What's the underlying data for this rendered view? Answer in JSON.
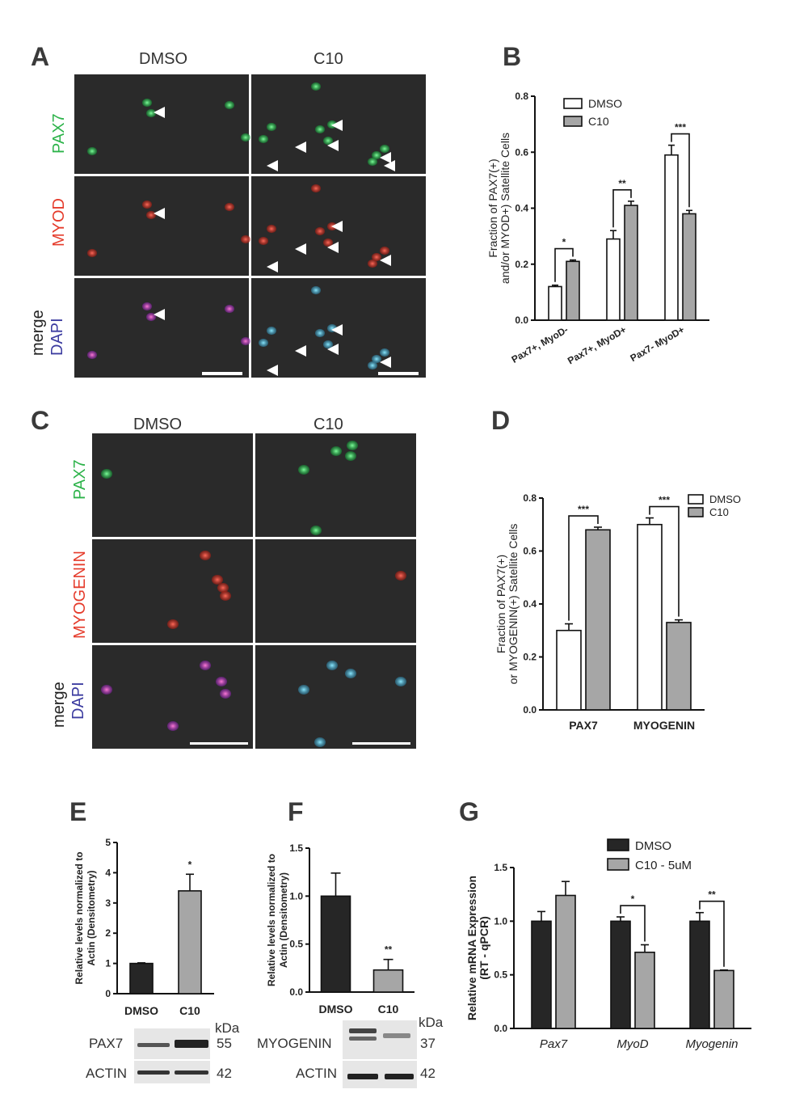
{
  "panels": {
    "A": {
      "label": "A",
      "columns": [
        "DMSO",
        "C10"
      ],
      "rows": [
        {
          "text": "PAX7",
          "color": "#2db34a"
        },
        {
          "text": "MYOD",
          "color": "#e53c2c"
        },
        {
          "text": "merge",
          "color": "#222222"
        },
        {
          "text": "DAPI",
          "color": "#3c3ca0"
        }
      ]
    },
    "C": {
      "label": "C",
      "columns": [
        "DMSO",
        "C10"
      ],
      "rows": [
        {
          "text": "PAX7",
          "color": "#2db34a"
        },
        {
          "text": "MYOGENIN",
          "color": "#e53c2c"
        },
        {
          "text": "merge",
          "color": "#222222"
        },
        {
          "text": "DAPI",
          "color": "#3c3ca0"
        }
      ]
    },
    "E_blot": {
      "rows": [
        "PAX7",
        "ACTIN"
      ],
      "kda_label": "kDa",
      "kda": [
        "55",
        "42"
      ]
    },
    "F_blot": {
      "rows": [
        "MYOGENIN",
        "ACTIN"
      ],
      "kda_label": "kDa",
      "kda": [
        "37",
        "42"
      ]
    }
  },
  "chart_data": [
    {
      "id": "B",
      "panel_label": "B",
      "type": "bar",
      "ylabel": "Fraction of PAX7(+) and/or MYOD+) Satellite Cells",
      "ylabel_lines": [
        "Fraction of PAX7(+)",
        "and/or MYOD+) Satellite Cells"
      ],
      "categories": [
        "Pax7+, MyoD-",
        "Pax7+, MyoD+",
        "Pax7- MyoD+"
      ],
      "ylim": [
        0,
        0.8
      ],
      "yticks": [
        "0.0",
        "0.2",
        "0.4",
        "0.6",
        "0.8"
      ],
      "series": [
        {
          "name": "DMSO",
          "values": [
            0.12,
            0.29,
            0.59
          ],
          "errors": [
            0.005,
            0.03,
            0.035
          ],
          "color": "#ffffff"
        },
        {
          "name": "C10",
          "values": [
            0.21,
            0.41,
            0.38
          ],
          "errors": [
            0.005,
            0.015,
            0.012
          ],
          "color": "#a6a6a6"
        }
      ],
      "significance": [
        "*",
        "**",
        "***"
      ],
      "legend_position": "top"
    },
    {
      "id": "D",
      "panel_label": "D",
      "type": "bar",
      "ylabel": "Fraction of PAX7(+) or MYOGENIN(+) Satellite Cells",
      "ylabel_lines": [
        "Fraction of PAX7(+)",
        "or MYOGENIN(+) Satellite Cells"
      ],
      "categories": [
        "PAX7",
        "MYOGENIN"
      ],
      "ylim": [
        0,
        0.8
      ],
      "yticks": [
        "0.0",
        "0.2",
        "0.4",
        "0.6",
        "0.8"
      ],
      "series": [
        {
          "name": "DMSO",
          "values": [
            0.3,
            0.7
          ],
          "errors": [
            0.025,
            0.025
          ],
          "color": "#ffffff"
        },
        {
          "name": "C10",
          "values": [
            0.68,
            0.33
          ],
          "errors": [
            0.01,
            0.01
          ],
          "color": "#a6a6a6"
        }
      ],
      "significance": [
        "***",
        "***"
      ],
      "legend_position": "top-right"
    },
    {
      "id": "E",
      "panel_label": "E",
      "type": "bar",
      "ylabel": "Relative levels normalized to Actin (Densitometry)",
      "ylabel_lines": [
        "Relative levels normalized to",
        "Actin (Densitometry)"
      ],
      "categories": [
        "DMSO",
        "C10"
      ],
      "ylim": [
        0,
        5
      ],
      "yticks": [
        "0",
        "1",
        "2",
        "3",
        "4",
        "5"
      ],
      "values": [
        1.0,
        3.4
      ],
      "errors": [
        0.02,
        0.55
      ],
      "colors": [
        "#262626",
        "#a6a6a6"
      ],
      "significance": [
        "",
        "*"
      ]
    },
    {
      "id": "F",
      "panel_label": "F",
      "type": "bar",
      "ylabel": "Relative levels normalized to Actin (Densitometry)",
      "ylabel_lines": [
        "Relative levels normalized to",
        "Actin (Densitometry)"
      ],
      "categories": [
        "DMSO",
        "C10"
      ],
      "ylim": [
        0,
        1.5
      ],
      "yticks": [
        "0.0",
        "0.5",
        "1.0",
        "1.5"
      ],
      "values": [
        1.0,
        0.23
      ],
      "errors": [
        0.24,
        0.11
      ],
      "colors": [
        "#262626",
        "#a6a6a6"
      ],
      "significance": [
        "",
        "**"
      ]
    },
    {
      "id": "G",
      "panel_label": "G",
      "type": "bar",
      "ylabel": "Relative mRNA Expression (RT - qPCR)",
      "ylabel_lines": [
        "Relative mRNA Expression",
        "(RT - qPCR)"
      ],
      "categories": [
        "Pax7",
        "MyoD",
        "Myogenin"
      ],
      "ylim": [
        0,
        1.5
      ],
      "yticks": [
        "0.0",
        "0.5",
        "1.0",
        "1.5"
      ],
      "series": [
        {
          "name": "DMSO",
          "values": [
            1.0,
            1.0,
            1.0
          ],
          "errors": [
            0.09,
            0.04,
            0.08
          ],
          "color": "#262626"
        },
        {
          "name": "C10 - 5uM",
          "values": [
            1.24,
            0.71,
            0.54
          ],
          "errors": [
            0.13,
            0.07,
            0.005
          ],
          "color": "#a6a6a6"
        }
      ],
      "significance": [
        "",
        "*",
        "**"
      ],
      "legend_position": "top"
    }
  ]
}
